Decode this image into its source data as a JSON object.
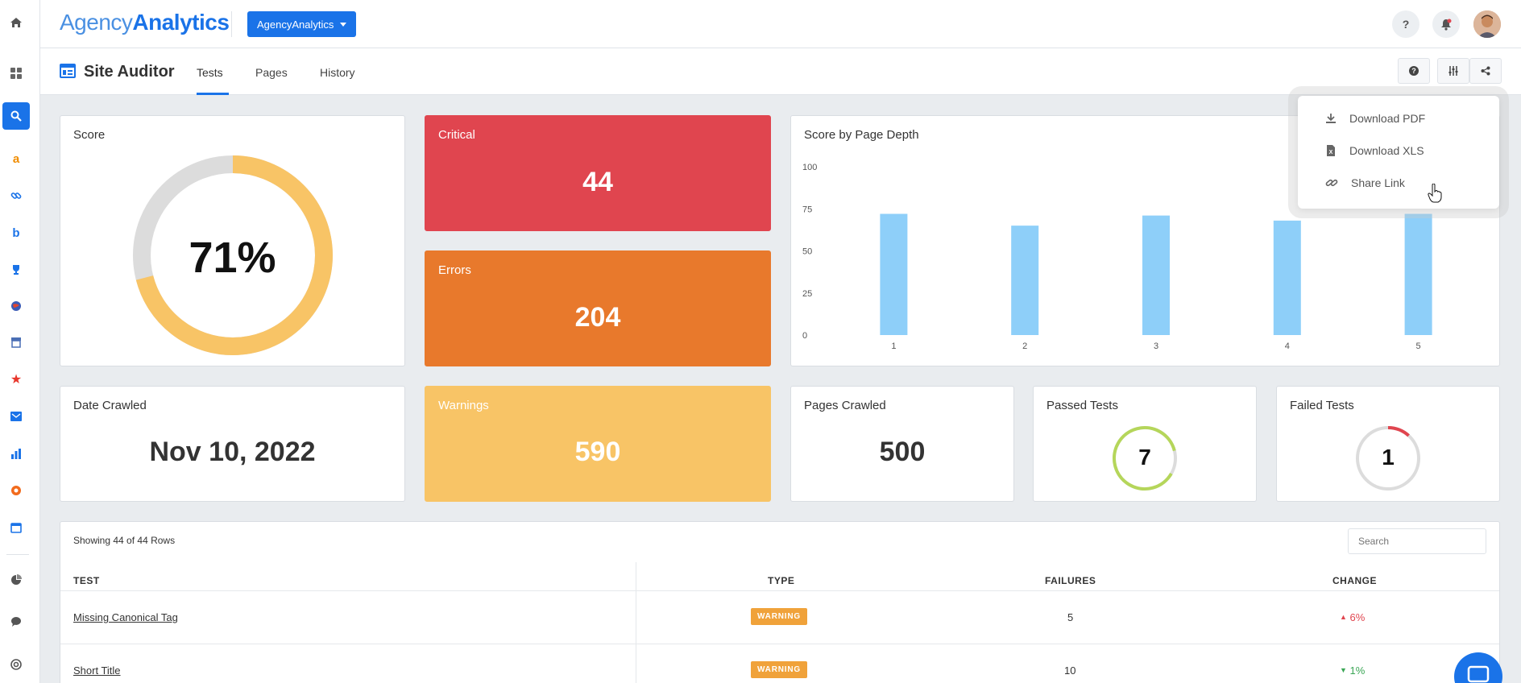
{
  "app": {
    "logo_part1": "Agency",
    "logo_part2": "Analytics",
    "account_button": "AgencyAnalytics",
    "help_label": "?"
  },
  "sidebar": {
    "items": [
      "home-icon",
      "dashboard-icon",
      "search-icon",
      "amazon-icon",
      "link-icon",
      "bing-icon",
      "trophy-icon",
      "globe-icon",
      "store-icon",
      "star-icon",
      "mail-icon",
      "bar-chart-icon",
      "fire-icon",
      "calendar-icon",
      "pie-chart-icon",
      "chat-icon",
      "target-icon"
    ],
    "active": "search-icon"
  },
  "subheader": {
    "title": "Site Auditor",
    "tabs": [
      "Tests",
      "Pages",
      "History"
    ],
    "active_tab": "Tests"
  },
  "dropdown": {
    "items": [
      "Download PDF",
      "Download XLS",
      "Share Link"
    ]
  },
  "score": {
    "title": "Score",
    "value_text": "71%",
    "value": 71
  },
  "critical": {
    "title": "Critical",
    "value": "44",
    "color": "#e0454f"
  },
  "errors": {
    "title": "Errors",
    "value": "204",
    "color": "#e8792c"
  },
  "warnings": {
    "title": "Warnings",
    "value": "590",
    "color": "#f8c466"
  },
  "date_crawled": {
    "title": "Date Crawled",
    "value": "Nov 10, 2022"
  },
  "pages_crawled": {
    "title": "Pages Crawled",
    "value": "500"
  },
  "passed_tests": {
    "title": "Passed Tests",
    "value": "7"
  },
  "failed_tests": {
    "title": "Failed Tests",
    "value": "1"
  },
  "chart_data": {
    "type": "bar",
    "title": "Score by Page Depth",
    "categories": [
      "1",
      "2",
      "3",
      "4",
      "5"
    ],
    "values": [
      72,
      65,
      71,
      68,
      72
    ],
    "ylim": [
      0,
      100
    ],
    "yticks": [
      "0",
      "25",
      "50",
      "75",
      "100"
    ],
    "xlabel": "",
    "ylabel": "",
    "color": "#8ecff9"
  },
  "table": {
    "showing": "Showing 44 of 44 Rows",
    "search_placeholder": "Search",
    "headers": [
      "TEST",
      "TYPE",
      "FAILURES",
      "CHANGE"
    ],
    "rows": [
      {
        "test": "Missing Canonical Tag",
        "type": "WARNING",
        "failures": "5",
        "change": "6%",
        "direction": "up"
      },
      {
        "test": "Short Title",
        "type": "WARNING",
        "failures": "10",
        "change": "1%",
        "direction": "down"
      }
    ]
  }
}
